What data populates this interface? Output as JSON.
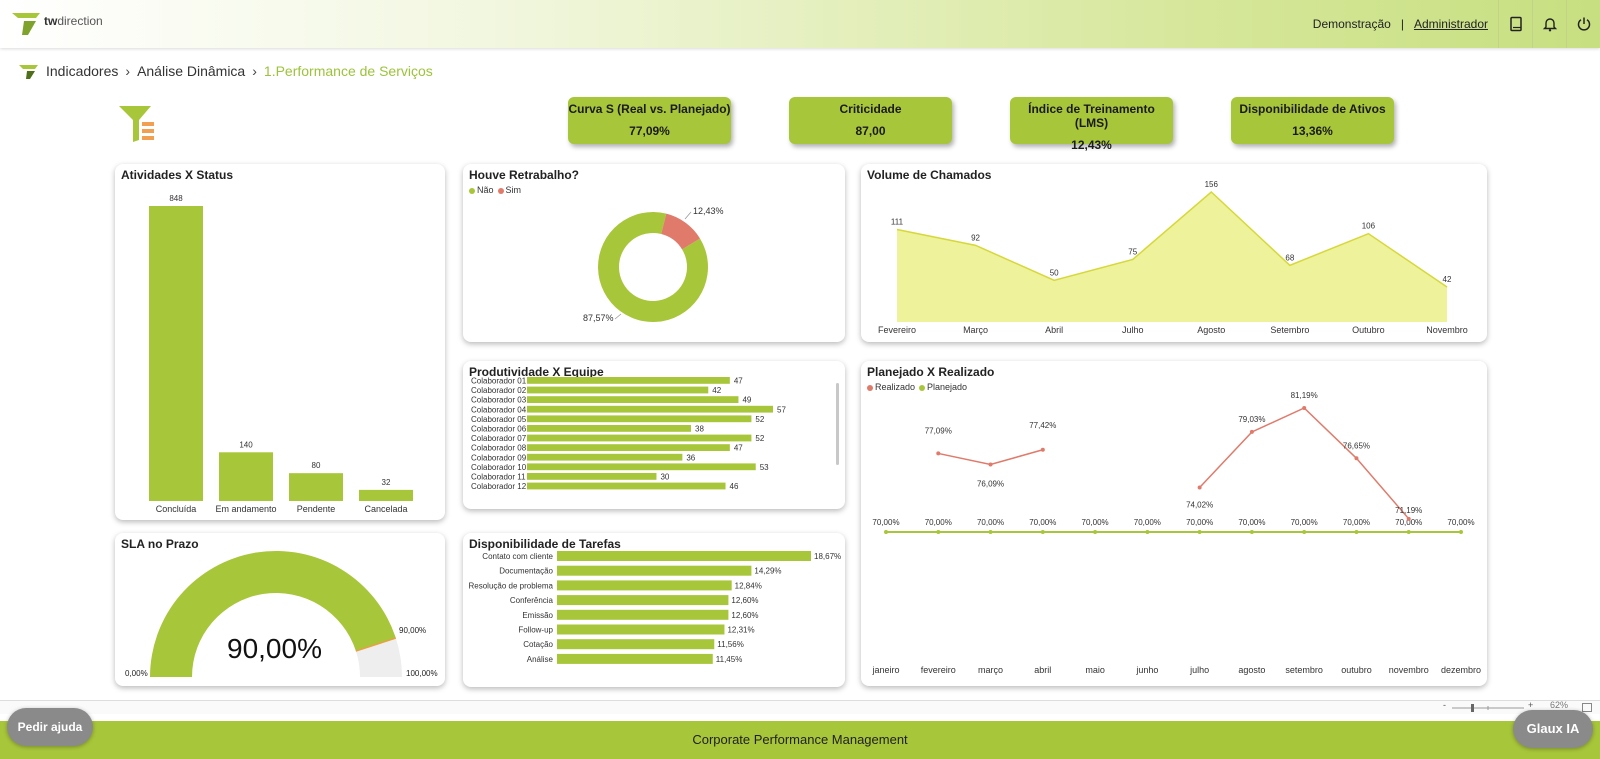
{
  "brand": {
    "name_bold": "tw",
    "name_rest": "direction",
    "accent": "#a8c63a"
  },
  "header": {
    "demo": "Demonstração",
    "separator": "|",
    "user": "Administrador",
    "icons": [
      "book-icon",
      "bell-icon",
      "power-icon"
    ]
  },
  "breadcrumb": {
    "items": [
      "Indicadores",
      "Análise Dinâmica"
    ],
    "current": "1.Performance de Serviços"
  },
  "kpis": [
    {
      "label": "Curva S (Real vs. Planejado)",
      "value": "77,09%"
    },
    {
      "label": "Criticidade",
      "value": "87,00"
    },
    {
      "label": "Índice de Treinamento (LMS)",
      "value": "12,43%"
    },
    {
      "label": "Disponibilidade de Ativos",
      "value": "13,36%"
    }
  ],
  "charts": {
    "status": {
      "title": "Atividades X Status"
    },
    "retrabalho": {
      "title": "Houve Retrabalho?",
      "legend": [
        "Não",
        "Sim"
      ]
    },
    "volume": {
      "title": "Volume de Chamados"
    },
    "produtividade": {
      "title": "Produtividade X Equipe"
    },
    "planejado": {
      "title": "Planejado X Realizado",
      "legend": [
        "Realizado",
        "Planejado"
      ]
    },
    "sla": {
      "title": "SLA no Prazo",
      "value_text": "90,00%",
      "min_label": "0,00%",
      "target_label": "90,00%",
      "max_label": "100,00%"
    },
    "tarefas": {
      "title": "Disponibilidade de Tarefas"
    }
  },
  "chart_data": [
    {
      "type": "bar",
      "title": "Atividades X Status",
      "categories": [
        "Concluída",
        "Em andamento",
        "Pendente",
        "Cancelada"
      ],
      "values": [
        848,
        140,
        80,
        32
      ],
      "color": "#a8c63a"
    },
    {
      "type": "pie",
      "title": "Houve Retrabalho?",
      "categories": [
        "Não",
        "Sim"
      ],
      "values": [
        87.57,
        12.43
      ],
      "labels": [
        "87,57%",
        "12,43%"
      ],
      "colors": [
        "#a8c63a",
        "#e07a6a"
      ]
    },
    {
      "type": "area",
      "title": "Volume de Chamados",
      "categories": [
        "Fevereiro",
        "Março",
        "Abril",
        "Julho",
        "Agosto",
        "Setembro",
        "Outubro",
        "Novembro"
      ],
      "values": [
        111,
        92,
        50,
        75,
        156,
        68,
        106,
        42
      ],
      "colors": [
        "#eef29a",
        "#d6d83a"
      ]
    },
    {
      "type": "bar",
      "title": "Produtividade X Equipe",
      "categories": [
        "Colaborador 01",
        "Colaborador 02",
        "Colaborador 03",
        "Colaborador 04",
        "Colaborador 05",
        "Colaborador 06",
        "Colaborador 07",
        "Colaborador 08",
        "Colaborador 09",
        "Colaborador 10",
        "Colaborador 11",
        "Colaborador 12"
      ],
      "values": [
        47,
        42,
        49,
        57,
        52,
        38,
        52,
        47,
        36,
        53,
        30,
        46
      ],
      "color": "#a8c63a"
    },
    {
      "type": "line",
      "title": "Planejado X Realizado",
      "categories": [
        "janeiro",
        "fevereiro",
        "março",
        "abril",
        "maio",
        "junho",
        "julho",
        "agosto",
        "setembro",
        "outubro",
        "novembro",
        "dezembro"
      ],
      "series": [
        {
          "name": "Realizado",
          "color": "#e07a6a",
          "values": [
            null,
            77.09,
            76.09,
            77.42,
            null,
            null,
            74.02,
            79.03,
            81.19,
            76.65,
            71.19,
            null
          ],
          "labels": [
            "",
            "77,09%",
            "76,09%",
            "77,42%",
            "",
            "",
            "74,02%",
            "79,03%",
            "81,19%",
            "76,65%",
            "71,19%",
            ""
          ]
        },
        {
          "name": "Planejado",
          "color": "#a8c63a",
          "values": [
            70,
            70,
            70,
            70,
            70,
            70,
            70,
            70,
            70,
            70,
            70,
            70
          ],
          "labels": [
            "70,00%",
            "70,00%",
            "70,00%",
            "70,00%",
            "70,00%",
            "70,00%",
            "70,00%",
            "70,00%",
            "70,00%",
            "70,00%",
            "70,00%",
            "70,00%"
          ]
        }
      ]
    },
    {
      "type": "gauge",
      "title": "SLA no Prazo",
      "value": 90,
      "target": 90,
      "ylim": [
        0,
        100
      ],
      "color": "#a8c63a"
    },
    {
      "type": "bar",
      "title": "Disponibilidade de Tarefas",
      "categories": [
        "Contato com cliente",
        "Documentação",
        "Resolução de problema",
        "Conferência",
        "Emissão",
        "Follow-up",
        "Cotação",
        "Análise"
      ],
      "values": [
        18.67,
        14.29,
        12.84,
        12.6,
        12.6,
        12.31,
        11.56,
        11.45
      ],
      "labels": [
        "18,67%",
        "14,29%",
        "12,84%",
        "12,60%",
        "12,60%",
        "12,31%",
        "11,56%",
        "11,45%"
      ],
      "color": "#a8c63a"
    }
  ],
  "zoom": {
    "minus": "-",
    "plus": "+",
    "level": "62%"
  },
  "footer": {
    "title": "Corporate Performance Management"
  },
  "buttons": {
    "help": "Pedir ajuda",
    "glaux": "Glaux IA"
  }
}
